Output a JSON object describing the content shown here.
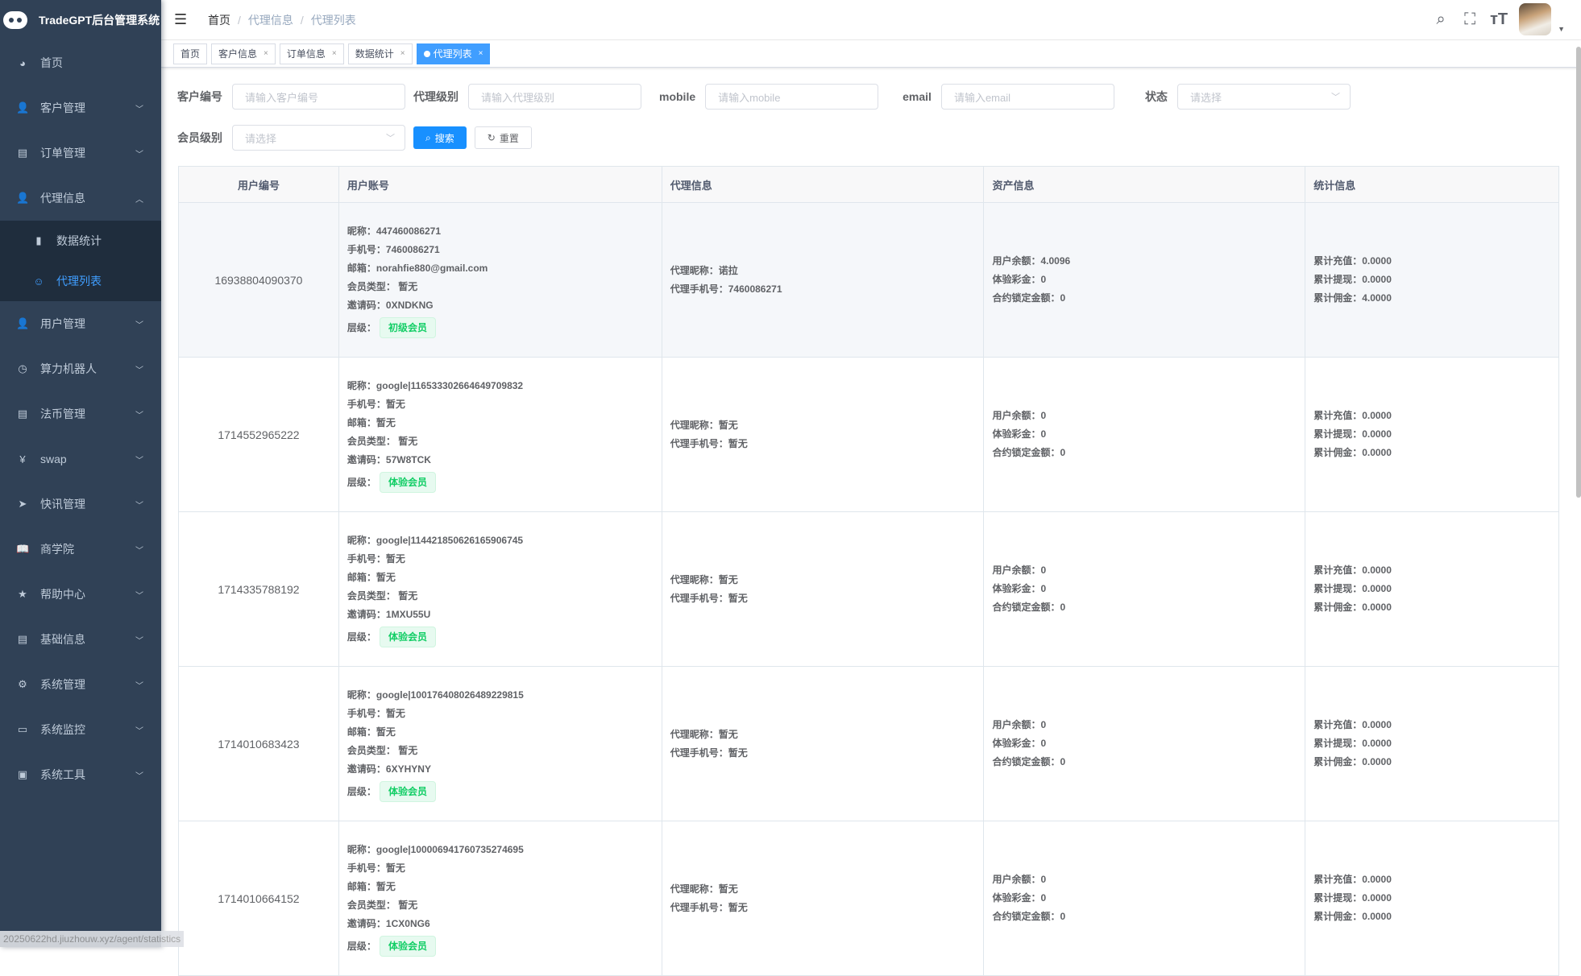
{
  "app": {
    "title": "TradeGPT后台管理系统"
  },
  "sidebar": {
    "items": [
      {
        "label": "首页",
        "icon": "dashboard-icon",
        "glyph": "◕"
      },
      {
        "label": "客户管理",
        "icon": "peoples-icon",
        "glyph": "👤",
        "chevron": "﹀"
      },
      {
        "label": "订单管理",
        "icon": "documentation-icon",
        "glyph": "▤",
        "chevron": "﹀"
      },
      {
        "label": "代理信息",
        "icon": "user-icon",
        "glyph": "👤",
        "chevron": "︿"
      },
      {
        "label": "数据统计",
        "icon": "chart-icon",
        "glyph": "▮",
        "sub": true
      },
      {
        "label": "代理列表",
        "icon": "robot-icon",
        "glyph": "☺",
        "sub": true,
        "active": true
      },
      {
        "label": "用户管理",
        "icon": "peoples-icon",
        "glyph": "👤",
        "chevron": "﹀"
      },
      {
        "label": "算力机器人",
        "icon": "clock-icon",
        "glyph": "◷",
        "chevron": "﹀"
      },
      {
        "label": "法币管理",
        "icon": "documentation-icon",
        "glyph": "▤",
        "chevron": "﹀"
      },
      {
        "label": "swap",
        "icon": "yen-icon",
        "glyph": "¥",
        "chevron": "﹀"
      },
      {
        "label": "快讯管理",
        "icon": "send-icon",
        "glyph": "➤",
        "chevron": "﹀"
      },
      {
        "label": "商学院",
        "icon": "book-icon",
        "glyph": "📖",
        "chevron": "﹀"
      },
      {
        "label": "帮助中心",
        "icon": "star-icon",
        "glyph": "★",
        "chevron": "﹀"
      },
      {
        "label": "基础信息",
        "icon": "documentation-icon",
        "glyph": "▤",
        "chevron": "﹀"
      },
      {
        "label": "系统管理",
        "icon": "gear-icon",
        "glyph": "⚙",
        "chevron": "﹀"
      },
      {
        "label": "系统监控",
        "icon": "monitor-icon",
        "glyph": "▭",
        "chevron": "﹀"
      },
      {
        "label": "系统工具",
        "icon": "tool-icon",
        "glyph": "▣",
        "chevron": "﹀"
      }
    ]
  },
  "header": {
    "breadcrumb": [
      "首页",
      "代理信息",
      "代理列表"
    ],
    "sep": "/"
  },
  "tags": [
    {
      "label": "首页"
    },
    {
      "label": "客户信息",
      "close": "×"
    },
    {
      "label": "订单信息",
      "close": "×"
    },
    {
      "label": "数据统计",
      "close": "×"
    },
    {
      "label": "代理列表",
      "close": "×",
      "active": true
    }
  ],
  "filters": {
    "customer_no": {
      "label": "客户编号",
      "placeholder": "请输入客户编号"
    },
    "agent_level": {
      "label": "代理级别",
      "placeholder": "请输入代理级别"
    },
    "mobile": {
      "label": "mobile",
      "placeholder": "请输入mobile"
    },
    "email": {
      "label": "email",
      "placeholder": "请输入email"
    },
    "status": {
      "label": "状态",
      "placeholder": "请选择"
    },
    "member_level": {
      "label": "会员级别",
      "placeholder": "请选择"
    },
    "search": "搜索",
    "reset": "重置"
  },
  "table": {
    "columns": [
      "用户编号",
      "用户账号",
      "代理信息",
      "资产信息",
      "统计信息"
    ],
    "rows": [
      {
        "id": "16938804090370",
        "nick": "昵称：447460086271",
        "phone": "手机号：7460086271",
        "email": "邮箱：norahfie880@gmail.com",
        "type": "会员类型： 暂无",
        "invite": "邀请码：0XNDKNG",
        "level_label": "层级：",
        "level": "初级会员",
        "agent_nick": "代理昵称：诺拉",
        "agent_phone": "代理手机号：7460086271",
        "balance": "用户余额：4.0096",
        "bonus": "体验彩金：0",
        "locked": "合约锁定金额：0",
        "recharge": "累计充值：0.0000",
        "withdraw": "累计提现：0.0000",
        "commission": "累计佣金：4.0000"
      },
      {
        "id": "1714552965222",
        "nick": "昵称：google|116533302664649709832",
        "phone": "手机号：暂无",
        "email": "邮箱：暂无",
        "type": "会员类型： 暂无",
        "invite": "邀请码：57W8TCK",
        "level_label": "层级：",
        "level": "体验会员",
        "agent_nick": "代理昵称：暂无",
        "agent_phone": "代理手机号：暂无",
        "balance": "用户余额：0",
        "bonus": "体验彩金：0",
        "locked": "合约锁定金额：0",
        "recharge": "累计充值：0.0000",
        "withdraw": "累计提现：0.0000",
        "commission": "累计佣金：0.0000"
      },
      {
        "id": "1714335788192",
        "nick": "昵称：google|114421850626165906745",
        "phone": "手机号：暂无",
        "email": "邮箱：暂无",
        "type": "会员类型： 暂无",
        "invite": "邀请码：1MXU55U",
        "level_label": "层级：",
        "level": "体验会员",
        "agent_nick": "代理昵称：暂无",
        "agent_phone": "代理手机号：暂无",
        "balance": "用户余额：0",
        "bonus": "体验彩金：0",
        "locked": "合约锁定金额：0",
        "recharge": "累计充值：0.0000",
        "withdraw": "累计提现：0.0000",
        "commission": "累计佣金：0.0000"
      },
      {
        "id": "1714010683423",
        "nick": "昵称：google|100176408026489229815",
        "phone": "手机号：暂无",
        "email": "邮箱：暂无",
        "type": "会员类型： 暂无",
        "invite": "邀请码：6XYHYNY",
        "level_label": "层级：",
        "level": "体验会员",
        "agent_nick": "代理昵称：暂无",
        "agent_phone": "代理手机号：暂无",
        "balance": "用户余额：0",
        "bonus": "体验彩金：0",
        "locked": "合约锁定金额：0",
        "recharge": "累计充值：0.0000",
        "withdraw": "累计提现：0.0000",
        "commission": "累计佣金：0.0000"
      },
      {
        "id": "1714010664152",
        "nick": "昵称：google|100006941760735274695",
        "phone": "手机号：暂无",
        "email": "邮箱：暂无",
        "type": "会员类型： 暂无",
        "invite": "邀请码：1CX0NG6",
        "level_label": "层级：",
        "level": "体验会员",
        "agent_nick": "代理昵称：暂无",
        "agent_phone": "代理手机号：暂无",
        "balance": "用户余额：0",
        "bonus": "体验彩金：0",
        "locked": "合约锁定金额：0",
        "recharge": "累计充值：0.0000",
        "withdraw": "累计提现：0.0000",
        "commission": "累计佣金：0.0000"
      }
    ]
  },
  "statusbar": {
    "url": "20250622hd.jiuzhouw.xyz/agent/statistics"
  },
  "colors": {
    "sidebar": "#304156",
    "submenu": "#1f2d3d",
    "primary": "#409eff",
    "success": "#13ce66"
  }
}
